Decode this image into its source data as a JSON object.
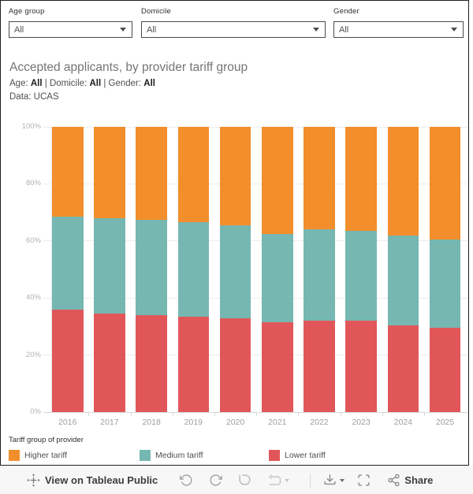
{
  "filters": [
    {
      "label": "Age group",
      "value": "All"
    },
    {
      "label": "Domicile",
      "value": "All"
    },
    {
      "label": "Gender",
      "value": "All"
    }
  ],
  "header": {
    "title": "Accepted applicants, by provider tariff group",
    "subtitle": {
      "separator": " | ",
      "parts": [
        {
          "label": "Age:",
          "value": "All"
        },
        {
          "label": "Domicile:",
          "value": "All"
        },
        {
          "label": "Gender:",
          "value": "All"
        }
      ]
    },
    "data_source": "Data: UCAS"
  },
  "chart_data": {
    "type": "bar",
    "stacked": true,
    "stack_unit": "percent",
    "title": "Accepted applicants, by provider tariff group",
    "categories": [
      "2016",
      "2017",
      "2018",
      "2019",
      "2020",
      "2021",
      "2022",
      "2023",
      "2024",
      "2025"
    ],
    "series": [
      {
        "name": "Lower tariff",
        "color": "#E15759",
        "values": [
          36,
          34.5,
          34,
          33.5,
          33,
          31.5,
          32,
          32,
          30.5,
          29.5
        ]
      },
      {
        "name": "Medium tariff",
        "color": "#76B7B2",
        "values": [
          32.5,
          33.5,
          33.5,
          33,
          32.5,
          31,
          32,
          31.5,
          31.5,
          31
        ]
      },
      {
        "name": "Higher tariff",
        "color": "#F28E2B",
        "values": [
          31.5,
          32,
          32.5,
          33.5,
          34.5,
          37.5,
          36,
          36.5,
          38,
          39.5
        ]
      }
    ],
    "xlabel": "",
    "ylabel": "",
    "ylim": [
      0,
      100
    ],
    "y_ticks": [
      "0%",
      "20%",
      "40%",
      "60%",
      "80%",
      "100%"
    ],
    "grid": "horizontal",
    "legend_position": "bottom"
  },
  "legend": {
    "title": "Tariff group of provider",
    "items": [
      {
        "label": "Higher tariff",
        "color": "#F28E2B"
      },
      {
        "label": "Medium tariff",
        "color": "#76B7B2"
      },
      {
        "label": "Lower tariff",
        "color": "#E15759"
      }
    ]
  },
  "toolbar": {
    "view_label": "View on Tableau Public",
    "share_label": "Share"
  },
  "colors": {
    "higher_tariff": "#F28E2B",
    "medium_tariff": "#76B7B2",
    "lower_tariff": "#E15759",
    "toolbar_bg": "#f7f7f7",
    "frame_border": "#1f1f1f"
  }
}
